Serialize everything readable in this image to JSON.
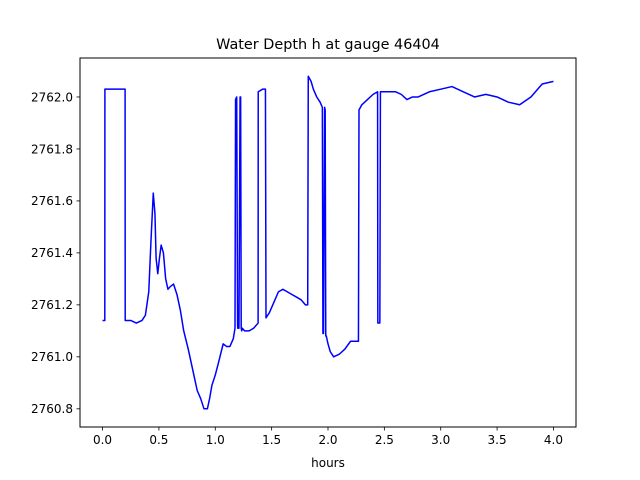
{
  "chart_data": {
    "type": "line",
    "title": "Water Depth h at gauge 46404",
    "xlabel": "hours",
    "ylabel": "",
    "xlim": [
      -0.2,
      4.2
    ],
    "ylim": [
      2760.73,
      2762.15
    ],
    "x_ticks": [
      0.0,
      0.5,
      1.0,
      1.5,
      2.0,
      2.5,
      3.0,
      3.5,
      4.0
    ],
    "x_tick_labels": [
      "0.0",
      "0.5",
      "1.0",
      "1.5",
      "2.0",
      "2.5",
      "3.0",
      "3.5",
      "4.0"
    ],
    "y_ticks": [
      2760.8,
      2761.0,
      2761.2,
      2761.4,
      2761.6,
      2761.8,
      2762.0
    ],
    "y_tick_labels": [
      "2760.8",
      "2761.0",
      "2761.2",
      "2761.4",
      "2761.6",
      "2761.8",
      "2762.0"
    ],
    "grid": false,
    "series": [
      {
        "color": "#0000ff",
        "x": [
          0.0,
          0.02,
          0.021,
          0.1,
          0.2,
          0.201,
          0.25,
          0.3,
          0.35,
          0.38,
          0.41,
          0.43,
          0.45,
          0.465,
          0.475,
          0.49,
          0.505,
          0.52,
          0.54,
          0.56,
          0.58,
          0.6,
          0.63,
          0.66,
          0.69,
          0.72,
          0.76,
          0.8,
          0.84,
          0.87,
          0.9,
          0.93,
          0.95,
          0.97,
          1.0,
          1.03,
          1.07,
          1.1,
          1.13,
          1.16,
          1.175,
          1.18,
          1.19,
          1.198,
          1.2,
          1.21,
          1.22,
          1.225,
          1.23,
          1.235,
          1.24,
          1.26,
          1.3,
          1.34,
          1.38,
          1.381,
          1.42,
          1.445,
          1.45,
          1.48,
          1.52,
          1.56,
          1.6,
          1.64,
          1.68,
          1.72,
          1.76,
          1.8,
          1.82,
          1.825,
          1.85,
          1.87,
          1.9,
          1.93,
          1.95,
          1.955,
          1.96,
          1.97,
          1.975,
          1.98,
          1.985,
          1.99,
          2.0,
          2.02,
          2.05,
          2.1,
          2.15,
          2.2,
          2.25,
          2.27,
          2.275,
          2.3,
          2.35,
          2.4,
          2.44,
          2.442,
          2.445,
          2.46,
          2.465,
          2.47,
          2.5,
          2.55,
          2.6,
          2.65,
          2.7,
          2.75,
          2.8,
          2.9,
          3.0,
          3.1,
          3.2,
          3.3,
          3.4,
          3.5,
          3.6,
          3.7,
          3.8,
          3.9,
          4.0
        ],
        "y": [
          2761.14,
          2761.14,
          2762.03,
          2762.03,
          2762.03,
          2761.14,
          2761.14,
          2761.13,
          2761.14,
          2761.16,
          2761.25,
          2761.45,
          2761.63,
          2761.55,
          2761.38,
          2761.32,
          2761.38,
          2761.43,
          2761.4,
          2761.3,
          2761.26,
          2761.27,
          2761.28,
          2761.24,
          2761.18,
          2761.1,
          2761.03,
          2760.95,
          2760.87,
          2760.84,
          2760.8,
          2760.8,
          2760.84,
          2760.89,
          2760.93,
          2760.98,
          2761.05,
          2761.04,
          2761.04,
          2761.07,
          2761.11,
          2761.99,
          2762.0,
          2761.12,
          2761.11,
          2761.11,
          2762.0,
          2762.0,
          2761.11,
          2761.1,
          2761.11,
          2761.1,
          2761.1,
          2761.11,
          2761.13,
          2762.02,
          2762.03,
          2762.03,
          2761.15,
          2761.17,
          2761.21,
          2761.25,
          2761.26,
          2761.25,
          2761.24,
          2761.23,
          2761.22,
          2761.2,
          2761.2,
          2762.08,
          2762.06,
          2762.03,
          2762.0,
          2761.98,
          2761.96,
          2761.09,
          2761.09,
          2761.96,
          2761.95,
          2761.08,
          2761.08,
          2761.07,
          2761.05,
          2761.02,
          2761.0,
          2761.01,
          2761.03,
          2761.06,
          2761.06,
          2761.06,
          2761.95,
          2761.97,
          2761.99,
          2762.01,
          2762.02,
          2761.13,
          2761.13,
          2761.13,
          2762.02,
          2762.02,
          2762.02,
          2762.02,
          2762.02,
          2762.01,
          2761.99,
          2762.0,
          2762.0,
          2762.02,
          2762.03,
          2762.04,
          2762.02,
          2762.0,
          2762.01,
          2762.0,
          2761.98,
          2761.97,
          2762.0,
          2762.05,
          2762.06
        ]
      }
    ]
  }
}
